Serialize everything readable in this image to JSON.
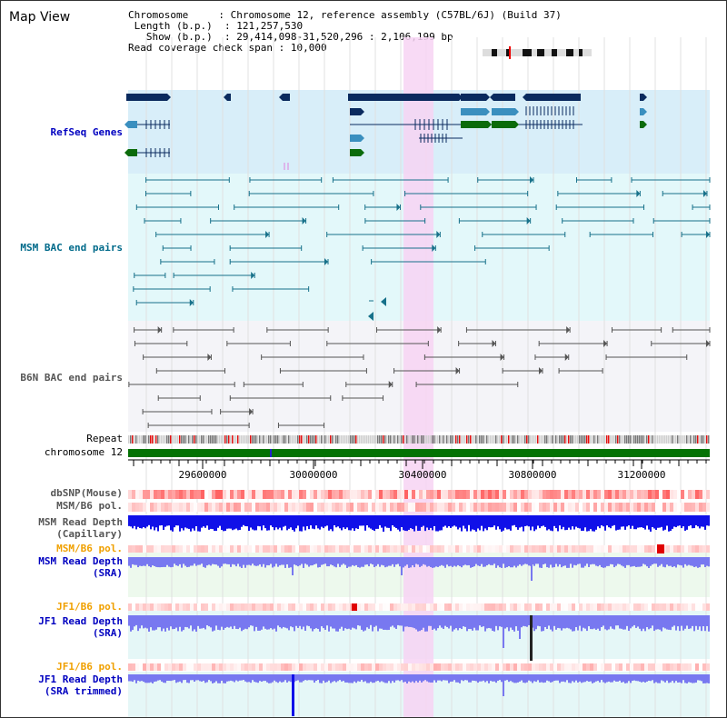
{
  "page": {
    "title": "Map View"
  },
  "info": {
    "chromosome_label": "Chromosome",
    "chromosome_value": "Chromosome 12, reference assembly (C57BL/6J) (Build 37)",
    "length_label": "Length (b.p.)",
    "length_value": "121,257,530",
    "show_label": "Show (b.p.)",
    "show_value": "29,414,098-31,520,296 : 2,106,199 bp",
    "coverage_label": "Read coverage check span",
    "coverage_value": "10,000"
  },
  "tracks": {
    "refseq": "RefSeq Genes",
    "msm_bac": "MSM BAC end pairs",
    "b6n_bac": "B6N BAC end pairs",
    "repeat": "Repeat",
    "chromosome": "chromosome 12",
    "dbsnp": "dbSNP(Mouse)",
    "msm_b6_pol": "MSM/B6 pol.",
    "msm_depth_cap_1": "MSM Read Depth",
    "msm_depth_cap_2": "(Capillary)",
    "msm_b6_pol_2": "MSM/B6 pol.",
    "msm_depth_sra_1": "MSM Read Depth",
    "msm_depth_sra_2": "(SRA)",
    "jf1_pol": "JF1/B6 pol.",
    "jf1_depth_sra_1": "JF1 Read Depth",
    "jf1_depth_sra_2": "(SRA)",
    "jf1_pol_2": "JF1/B6 pol.",
    "jf1_depth_trim_1": "JF1 Read Depth",
    "jf1_depth_trim_2": "(SRA trimmed)"
  },
  "axis": {
    "ticks": [
      "29600000",
      "30000000",
      "30400000",
      "30800000",
      "31200000"
    ]
  },
  "colors": {
    "refseq_bg": "#d8eef9",
    "msm_bg": "#e3f8fa",
    "b6n_bg": "#f4f4f8",
    "highlight": "#f7d4f3",
    "refseq_dark": "#0a2a5e",
    "refseq_mid": "#3a8fbf",
    "refseq_green": "#0b6b0b",
    "msm_line": "#17718a",
    "b6n_line": "#555555",
    "chrom_green": "#047204",
    "depth_blue": "#1010e8",
    "sra_blue": "#7878f0",
    "label_blue": "#0000c0",
    "label_orange": "#f0a000",
    "label_teal": "#006a8a"
  }
}
